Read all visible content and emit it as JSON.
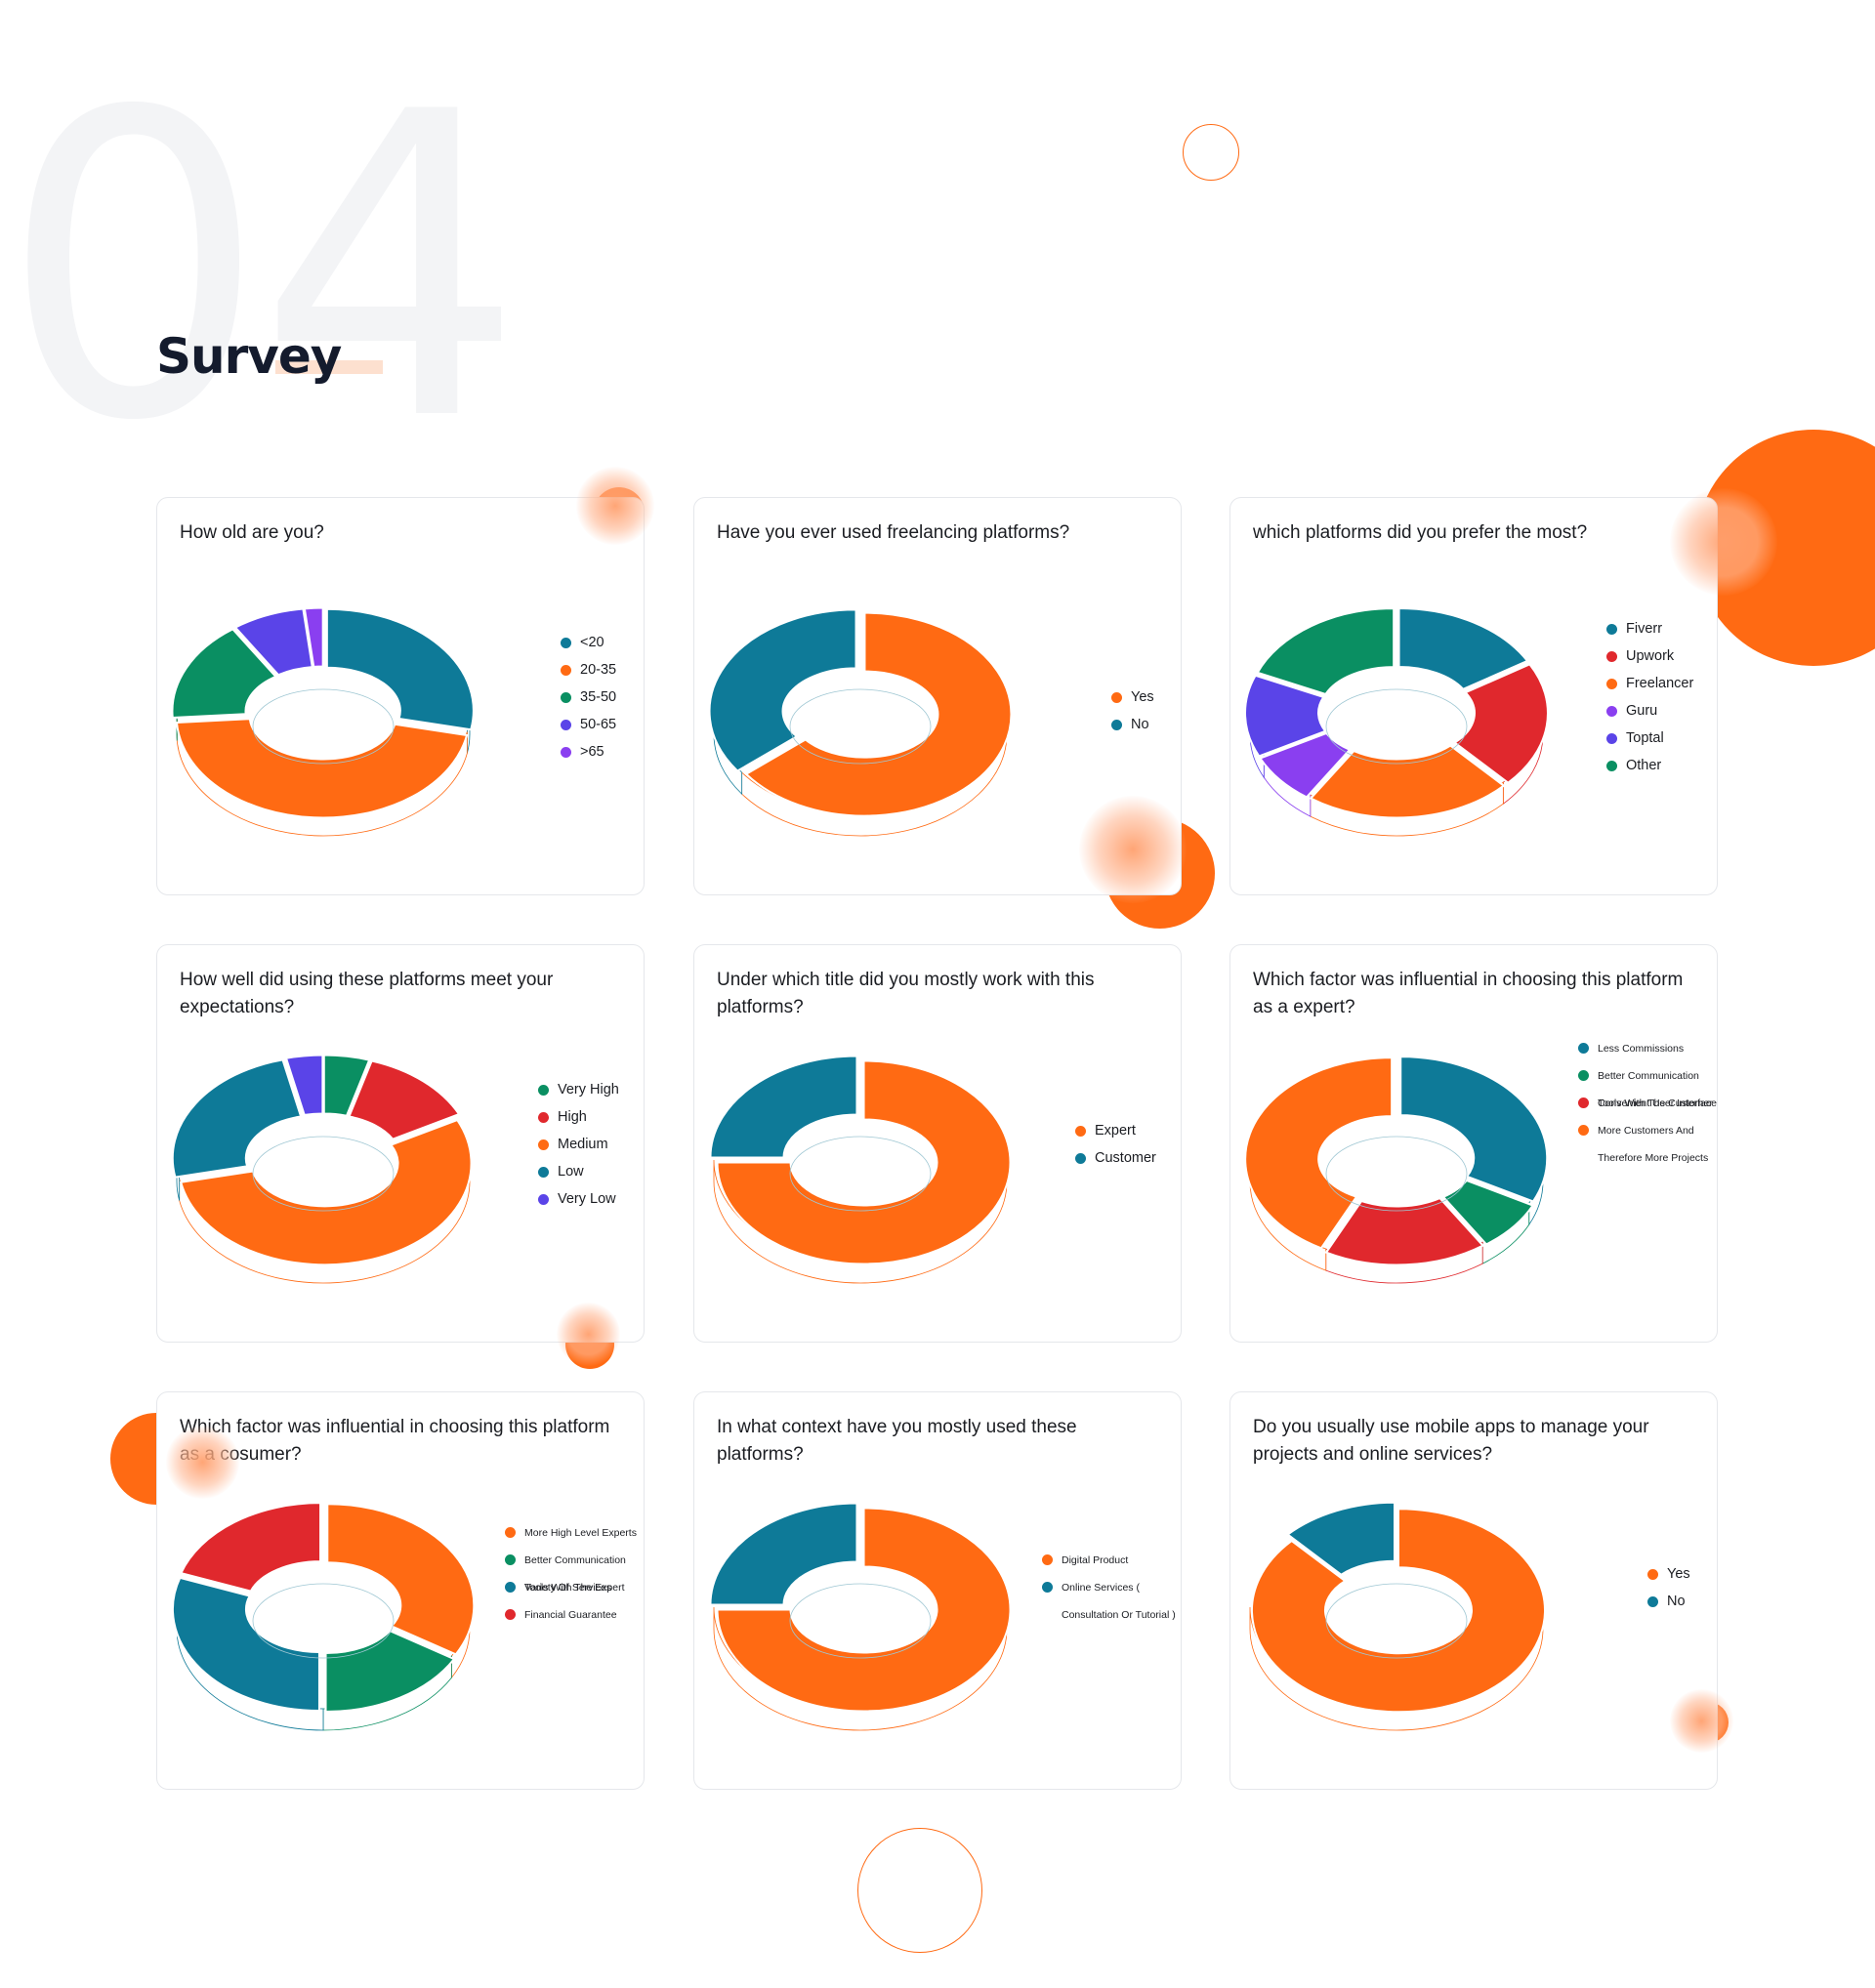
{
  "section": {
    "number": "04",
    "title": "Survey"
  },
  "colors": {
    "teal": "#0e7a98",
    "orange": "#ff6a13",
    "green": "#0a8f62",
    "indigo": "#5a44e8",
    "violet": "#8a3ff0",
    "red": "#e0282d"
  },
  "chart_data": [
    {
      "type": "pie",
      "title": "How old are you?",
      "categories": [
        "<20",
        "20-35",
        "35-50",
        "50-65",
        ">65"
      ],
      "values": [
        28,
        46,
        16,
        8,
        2
      ],
      "colors": [
        "#0e7a98",
        "#ff6a13",
        "#0a8f62",
        "#5a44e8",
        "#8a3ff0"
      ],
      "legend": "right"
    },
    {
      "type": "pie",
      "title": "Have you ever used freelancing platforms?",
      "categories": [
        "Yes",
        "No"
      ],
      "values": [
        65,
        35
      ],
      "colors": [
        "#ff6a13",
        "#0e7a98"
      ],
      "legend": "right"
    },
    {
      "type": "pie",
      "title": "which platforms did you prefer the most?",
      "categories": [
        "Fiverr",
        "Upwork",
        "Freelancer",
        "Guru",
        "Toptal",
        "Other"
      ],
      "values": [
        17,
        20,
        23,
        8,
        13,
        19
      ],
      "colors": [
        "#0e7a98",
        "#e0282d",
        "#ff6a13",
        "#8a3ff0",
        "#5a44e8",
        "#0a8f62"
      ],
      "legend": "right"
    },
    {
      "type": "pie",
      "title": "How well did using these platforms meet your expectations?",
      "categories": [
        "Very High",
        "High",
        "Medium",
        "Low",
        "Very Low"
      ],
      "values": [
        5,
        13,
        54,
        24,
        4
      ],
      "colors": [
        "#0a8f62",
        "#e0282d",
        "#ff6a13",
        "#0e7a98",
        "#5a44e8"
      ],
      "legend": "right"
    },
    {
      "type": "pie",
      "title": "Under which title did you mostly work with this platforms?",
      "categories": [
        "Expert",
        "Customer"
      ],
      "values": [
        75,
        25
      ],
      "colors": [
        "#ff6a13",
        "#0e7a98"
      ],
      "legend": "right"
    },
    {
      "type": "pie",
      "title": "Which factor was influential in choosing this platform as a expert?",
      "categories": [
        "Less Commissions",
        "Better Communication Tools With The Customer",
        "Convenient User Interface",
        "More Customers And Therefore More Projects"
      ],
      "values": [
        32,
        8,
        18,
        42
      ],
      "colors": [
        "#0e7a98",
        "#0a8f62",
        "#e0282d",
        "#ff6a13"
      ],
      "legend": "right"
    },
    {
      "type": "pie",
      "title": "Which factor was influential in choosing this platform as a cosumer?",
      "categories": [
        "More High Level Experts",
        "Better Communication Tools With The Expert",
        "Variety Of Services",
        "Financial Guarantee"
      ],
      "values": [
        33,
        17,
        30,
        20
      ],
      "colors": [
        "#ff6a13",
        "#0a8f62",
        "#0e7a98",
        "#e0282d"
      ],
      "legend": "right"
    },
    {
      "type": "pie",
      "title": "In what context have you mostly used these platforms?",
      "categories": [
        "Digital Product",
        "Online Services ( Consultation Or Tutorial )"
      ],
      "values": [
        75,
        25
      ],
      "colors": [
        "#ff6a13",
        "#0e7a98"
      ],
      "legend": "right"
    },
    {
      "type": "pie",
      "title": "Do you usually use mobile apps to manage your projects and online services?",
      "categories": [
        "Yes",
        "No"
      ],
      "values": [
        87,
        13
      ],
      "colors": [
        "#ff6a13",
        "#0e7a98"
      ],
      "legend": "right"
    }
  ]
}
